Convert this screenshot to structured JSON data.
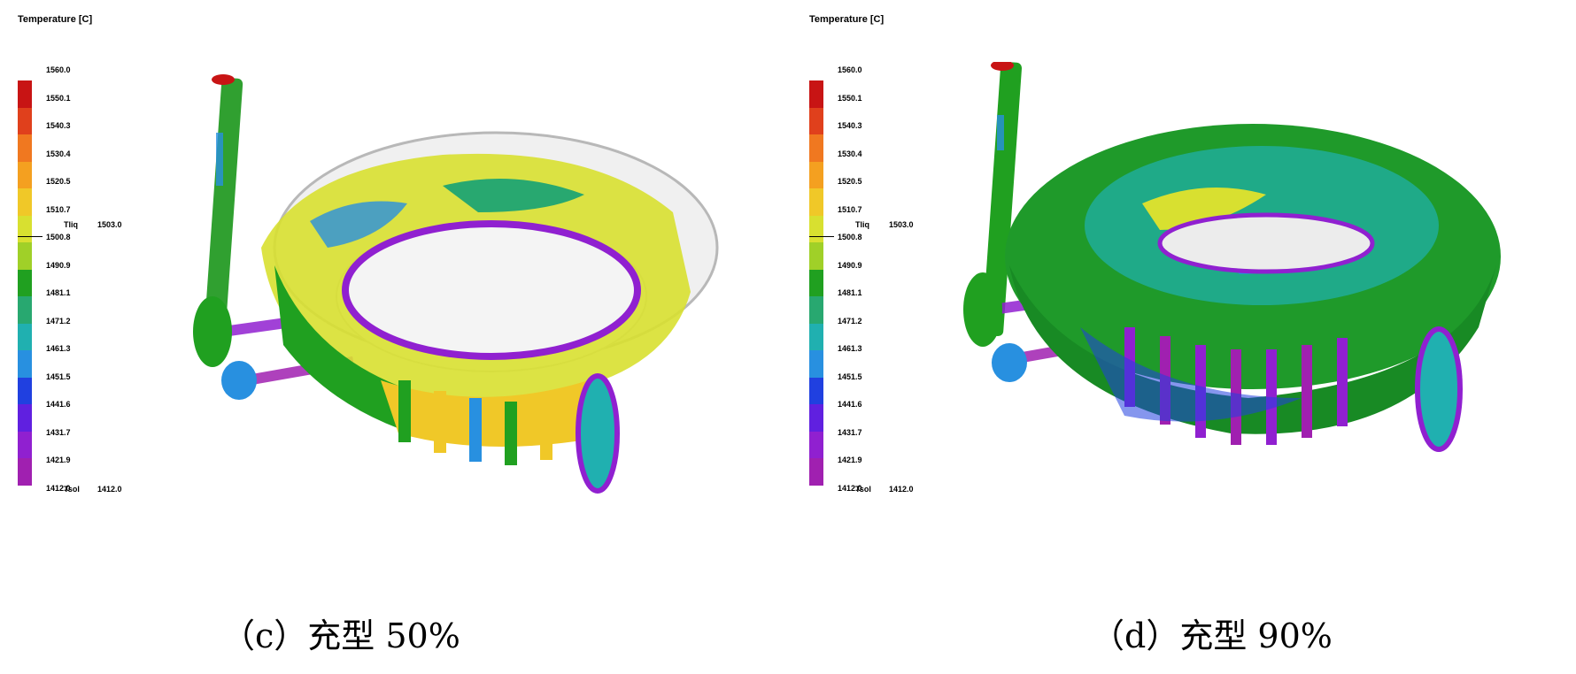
{
  "panels": [
    {
      "legend_title": "Temperature [C]",
      "ticks": [
        "1560.0",
        "1550.1",
        "1540.3",
        "1530.4",
        "1520.5",
        "1510.7",
        "1500.8",
        "1490.9",
        "1481.1",
        "1471.2",
        "1461.3",
        "1451.5",
        "1441.6",
        "1431.7",
        "1421.9",
        "1412.0"
      ],
      "tliq_label": "Tliq",
      "tliq_value": "1503.0",
      "tsol_label": "Tsol",
      "tsol_value": "1412.0",
      "caption": "（c）充型 50%",
      "fill_fraction": 0.5
    },
    {
      "legend_title": "Temperature [C]",
      "ticks": [
        "1560.0",
        "1550.1",
        "1540.3",
        "1530.4",
        "1520.5",
        "1510.7",
        "1500.8",
        "1490.9",
        "1481.1",
        "1471.2",
        "1461.3",
        "1451.5",
        "1441.6",
        "1431.7",
        "1421.9",
        "1412.0"
      ],
      "tliq_label": "Tliq",
      "tliq_value": "1503.0",
      "tsol_label": "Tsol",
      "tsol_value": "1412.0",
      "caption": "（d）充型 90%",
      "fill_fraction": 0.9
    }
  ],
  "colors": [
    "#c81414",
    "#e0401c",
    "#f07820",
    "#f4a020",
    "#f0c828",
    "#d8e030",
    "#a0d028",
    "#20a020",
    "#28a870",
    "#20b0b0",
    "#2890e0",
    "#2040e0",
    "#6020e0",
    "#9020d0",
    "#a020b0"
  ]
}
